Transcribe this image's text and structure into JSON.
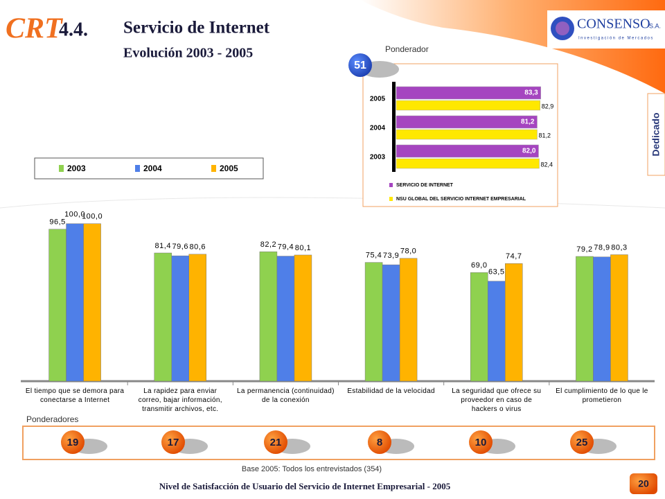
{
  "header": {
    "logo_left": "CRT",
    "section": "4.4.",
    "title": "Servicio de Internet",
    "subtitle": "Evolución 2003 - 2005",
    "logo_right": "CONSENSO",
    "logo_right_suffix": "S.A.",
    "logo_tagline": "Investigación de Mercados",
    "tab": "Dedicado"
  },
  "chart_data": [
    {
      "type": "bar",
      "categories": [
        "El tiempo que se demora para\nconectarse a Internet",
        "La rapidez para enviar\ncorreo, bajar información,\ntransmitir archivos, etc.",
        "La permanencia (continuidad)\nde la conexión",
        "Estabilidad de la velocidad",
        "La seguridad que ofrece su\nproveedor en caso de\nhackers o virus",
        "El cumplimiento de lo que le\nprometieron"
      ],
      "series": [
        {
          "name": "2003",
          "color": "#8fd14f",
          "values": [
            96.5,
            81.4,
            82.2,
            75.4,
            69.0,
            79.2
          ],
          "value_labels": [
            "96,5",
            "81,4",
            "82,2",
            "75,4",
            "69,0",
            "79,2"
          ]
        },
        {
          "name": "2004",
          "color": "#4f7fe8",
          "values": [
            100.0,
            79.6,
            79.4,
            73.9,
            63.5,
            78.9
          ],
          "value_labels": [
            "100,0",
            "79,6",
            "79,4",
            "73,9",
            "63,5",
            "78,9"
          ]
        },
        {
          "name": "2005",
          "color": "#ffb300",
          "values": [
            100.0,
            80.6,
            80.1,
            78.0,
            74.7,
            80.3
          ],
          "value_labels": [
            "100,0",
            "80,6",
            "80,1",
            "78,0",
            "74,7",
            "80,3"
          ]
        }
      ],
      "ylim": [
        0,
        110
      ]
    },
    {
      "type": "hbar",
      "categories": [
        "2005",
        "2004",
        "2003"
      ],
      "series": [
        {
          "name": "SERVICIO DE INTERNET",
          "color": "#a545c0",
          "values": [
            83.3,
            81.2,
            82.0
          ],
          "value_labels": [
            "83,3",
            "81,2",
            "82,0"
          ]
        },
        {
          "name": "NSU GLOBAL DEL SERVICIO INTERNET EMPRESARIAL",
          "color": "#ffe800",
          "values": [
            82.9,
            81.2,
            82.4
          ],
          "value_labels": [
            "82,9",
            "81,2",
            "82,4"
          ]
        }
      ],
      "xlim": [
        0,
        85
      ]
    }
  ],
  "ponderador": {
    "label": "Ponderador",
    "value": 51
  },
  "ponderadores": {
    "label": "Ponderadores",
    "values": [
      19,
      17,
      21,
      8,
      10,
      25
    ]
  },
  "footer": {
    "base": "Base 2005: Todos los entrevistados (354)",
    "title": "Nivel de Satisfacción de Usuario del Servicio de Internet Empresarial - 2005",
    "page": 20
  }
}
